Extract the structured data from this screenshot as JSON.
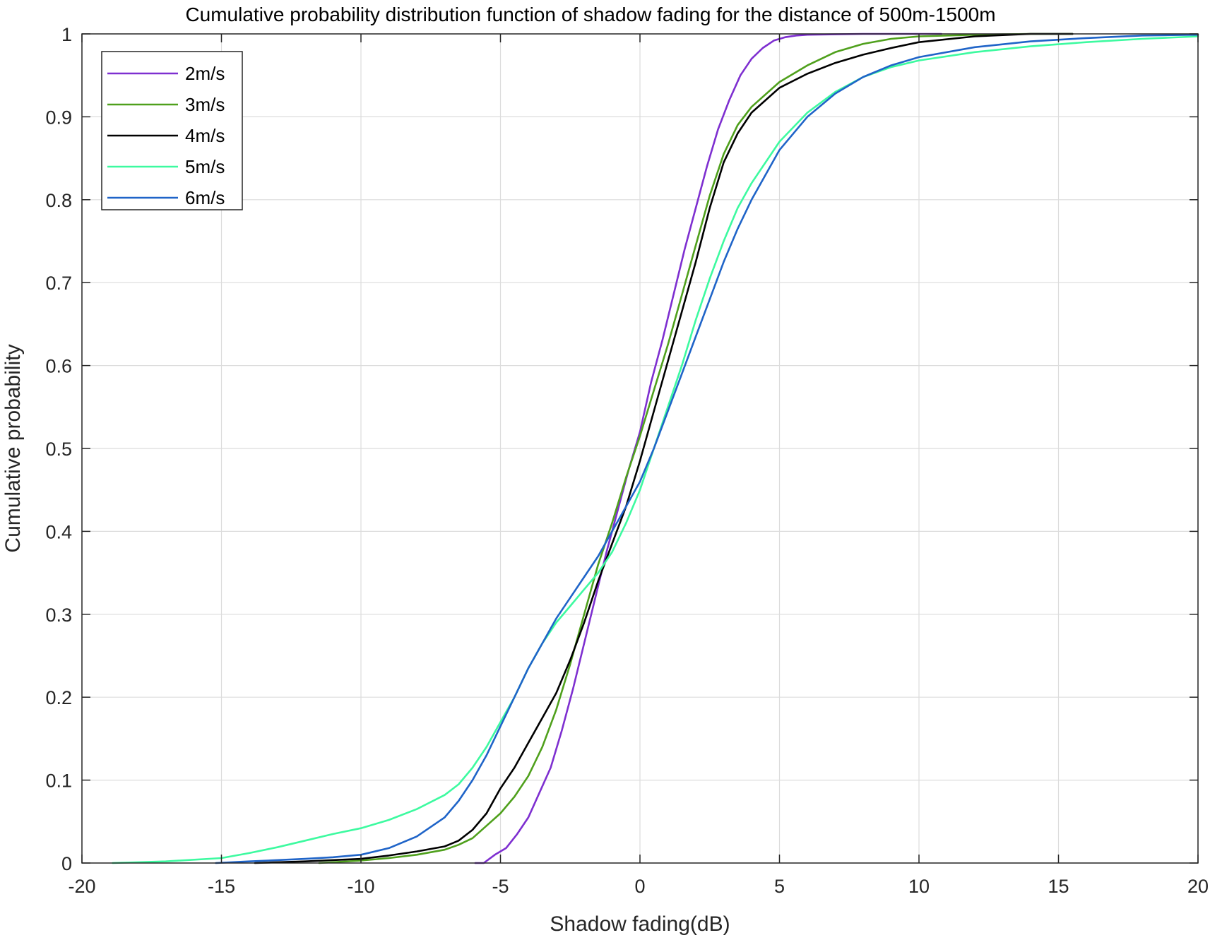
{
  "chart_data": {
    "type": "line",
    "title": "Cumulative probability distribution function of shadow fading for the distance of 500m-1500m",
    "xlabel": "Shadow fading(dB)",
    "ylabel": "Cumulative probability",
    "xlim": [
      -20,
      20
    ],
    "ylim": [
      0,
      1
    ],
    "xticks": [
      "-20",
      "-15",
      "-10",
      "-5",
      "0",
      "5",
      "10",
      "15",
      "20"
    ],
    "yticks": [
      "0",
      "0.1",
      "0.2",
      "0.3",
      "0.4",
      "0.5",
      "0.6",
      "0.7",
      "0.8",
      "0.9",
      "1"
    ],
    "grid": true,
    "legend_position": "top-left",
    "series": [
      {
        "name": "2m/s",
        "color": "#7e2fd0",
        "x": [
          -5.9,
          -5.6,
          -5.2,
          -4.8,
          -4.4,
          -4.0,
          -3.6,
          -3.2,
          -2.8,
          -2.4,
          -2.0,
          -1.6,
          -1.2,
          -0.8,
          -0.4,
          0.0,
          0.4,
          0.8,
          1.2,
          1.6,
          2.0,
          2.4,
          2.8,
          3.2,
          3.6,
          4.0,
          4.4,
          4.8,
          5.2,
          5.6,
          6.0,
          7.0,
          8.0,
          9.0,
          10.0,
          10.8
        ],
        "y": [
          0.0,
          0.0,
          0.01,
          0.018,
          0.035,
          0.055,
          0.085,
          0.115,
          0.16,
          0.21,
          0.265,
          0.32,
          0.375,
          0.425,
          0.475,
          0.52,
          0.58,
          0.63,
          0.685,
          0.74,
          0.79,
          0.84,
          0.885,
          0.92,
          0.95,
          0.97,
          0.983,
          0.992,
          0.996,
          0.998,
          0.999,
          0.9995,
          1.0,
          1.0,
          1.0,
          1.0
        ]
      },
      {
        "name": "3m/s",
        "color": "#4fa01c",
        "x": [
          -11.5,
          -10.0,
          -9.0,
          -8.0,
          -7.0,
          -6.5,
          -6.0,
          -5.5,
          -5.0,
          -4.5,
          -4.0,
          -3.5,
          -3.0,
          -2.5,
          -2.0,
          -1.5,
          -1.0,
          -0.5,
          0.0,
          0.5,
          1.0,
          1.5,
          2.0,
          2.5,
          3.0,
          3.5,
          4.0,
          5.0,
          6.0,
          7.0,
          8.0,
          9.0,
          10.0,
          12.0,
          14.0,
          15.5
        ],
        "y": [
          0.0,
          0.003,
          0.006,
          0.01,
          0.016,
          0.022,
          0.03,
          0.045,
          0.06,
          0.08,
          0.105,
          0.14,
          0.185,
          0.24,
          0.3,
          0.36,
          0.41,
          0.465,
          0.515,
          0.57,
          0.625,
          0.685,
          0.745,
          0.805,
          0.855,
          0.89,
          0.912,
          0.942,
          0.962,
          0.978,
          0.988,
          0.994,
          0.997,
          0.999,
          1.0,
          1.0
        ]
      },
      {
        "name": "4m/s",
        "color": "#000000",
        "x": [
          -13.8,
          -12.0,
          -10.0,
          -9.0,
          -8.0,
          -7.0,
          -6.5,
          -6.0,
          -5.5,
          -5.0,
          -4.5,
          -4.0,
          -3.5,
          -3.0,
          -2.5,
          -2.0,
          -1.5,
          -1.0,
          -0.5,
          0.0,
          0.5,
          1.0,
          1.5,
          2.0,
          2.5,
          3.0,
          3.5,
          4.0,
          5.0,
          6.0,
          7.0,
          8.0,
          9.0,
          10.0,
          12.0,
          14.0,
          15.5
        ],
        "y": [
          0.0,
          0.002,
          0.005,
          0.009,
          0.014,
          0.02,
          0.027,
          0.04,
          0.06,
          0.09,
          0.115,
          0.145,
          0.175,
          0.205,
          0.245,
          0.29,
          0.34,
          0.385,
          0.43,
          0.485,
          0.545,
          0.605,
          0.665,
          0.725,
          0.79,
          0.845,
          0.88,
          0.905,
          0.935,
          0.952,
          0.965,
          0.975,
          0.983,
          0.99,
          0.997,
          1.0,
          1.0
        ]
      },
      {
        "name": "5m/s",
        "color": "#3dfaa0",
        "x": [
          -18.9,
          -17.0,
          -15.0,
          -14.0,
          -13.0,
          -12.0,
          -11.0,
          -10.0,
          -9.0,
          -8.0,
          -7.0,
          -6.5,
          -6.0,
          -5.5,
          -5.0,
          -4.5,
          -4.0,
          -3.5,
          -3.0,
          -2.5,
          -2.0,
          -1.5,
          -1.0,
          -0.5,
          0.0,
          0.5,
          1.0,
          1.5,
          2.0,
          2.5,
          3.0,
          3.5,
          4.0,
          5.0,
          6.0,
          7.0,
          8.0,
          9.0,
          10.0,
          12.0,
          14.0,
          16.0,
          18.0,
          20.0
        ],
        "y": [
          0.0,
          0.002,
          0.006,
          0.012,
          0.019,
          0.027,
          0.035,
          0.042,
          0.052,
          0.065,
          0.082,
          0.095,
          0.115,
          0.14,
          0.17,
          0.2,
          0.235,
          0.265,
          0.29,
          0.31,
          0.33,
          0.35,
          0.375,
          0.41,
          0.45,
          0.5,
          0.55,
          0.6,
          0.655,
          0.705,
          0.75,
          0.79,
          0.82,
          0.87,
          0.905,
          0.93,
          0.948,
          0.96,
          0.968,
          0.978,
          0.985,
          0.99,
          0.994,
          0.997
        ]
      },
      {
        "name": "6m/s",
        "color": "#1f64c8",
        "x": [
          -15.2,
          -14.0,
          -12.0,
          -11.0,
          -10.0,
          -9.0,
          -8.0,
          -7.0,
          -6.5,
          -6.0,
          -5.5,
          -5.0,
          -4.5,
          -4.0,
          -3.5,
          -3.0,
          -2.5,
          -2.0,
          -1.5,
          -1.0,
          -0.5,
          0.0,
          0.5,
          1.0,
          1.5,
          2.0,
          2.5,
          3.0,
          3.5,
          4.0,
          5.0,
          6.0,
          7.0,
          8.0,
          9.0,
          10.0,
          12.0,
          14.0,
          16.0,
          18.0,
          20.0
        ],
        "y": [
          0.0,
          0.002,
          0.005,
          0.007,
          0.01,
          0.018,
          0.032,
          0.055,
          0.075,
          0.1,
          0.13,
          0.165,
          0.2,
          0.235,
          0.265,
          0.295,
          0.32,
          0.345,
          0.37,
          0.4,
          0.43,
          0.46,
          0.5,
          0.545,
          0.59,
          0.635,
          0.68,
          0.725,
          0.765,
          0.8,
          0.86,
          0.9,
          0.928,
          0.948,
          0.962,
          0.972,
          0.984,
          0.991,
          0.995,
          0.998,
          0.999
        ]
      }
    ]
  }
}
